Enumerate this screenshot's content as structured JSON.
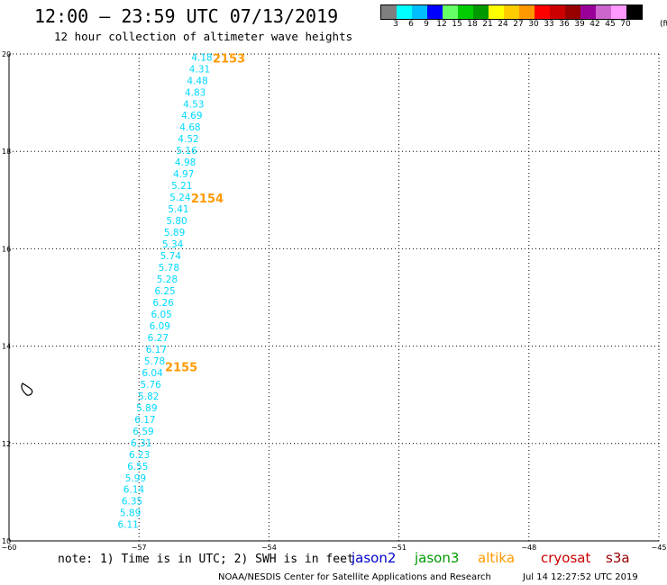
{
  "header": {
    "title": "12:00 — 23:59 UTC 07/13/2019",
    "subtitle": "12 hour collection of altimeter wave heights"
  },
  "colorbar": {
    "colors": [
      "#7f7f7f",
      "#00ffff",
      "#00bfff",
      "#0000ff",
      "#66ff66",
      "#00cc00",
      "#009900",
      "#ffff00",
      "#ffcc00",
      "#ff9900",
      "#ff0000",
      "#cc0000",
      "#990000",
      "#990099",
      "#cc66cc",
      "#ff99ff",
      "#000000"
    ],
    "labels": [
      "3",
      "6",
      "9",
      "12",
      "15",
      "18",
      "21",
      "24",
      "27",
      "30",
      "33",
      "36",
      "39",
      "42",
      "45",
      "70"
    ],
    "unit": "(ft)"
  },
  "footer": {
    "note": "note: 1) Time is in UTC; 2) SWH is in feet",
    "credit": "NOAA/NESDIS Center for Satellite Applications and Research",
    "timestamp": "Jul 14 12:27:52 UTC 2019",
    "satellites": [
      {
        "name": "jason2",
        "color": "#0000cc"
      },
      {
        "name": "jason3",
        "color": "#009900"
      },
      {
        "name": "altika",
        "color": "#ff9900"
      },
      {
        "name": "cryosat",
        "color": "#cc0000"
      },
      {
        "name": "s3a",
        "color": "#990000"
      }
    ]
  },
  "chart_data": {
    "type": "scatter",
    "title": "12:00 — 23:59 UTC 07/13/2019",
    "subtitle": "12 hour collection of altimeter wave heights",
    "xlabel": "",
    "ylabel": "",
    "xlim": [
      -60,
      -45
    ],
    "ylim": [
      10,
      20
    ],
    "x_ticks": [
      -60,
      -57,
      -54,
      -51,
      -48,
      -45
    ],
    "y_ticks": [
      10,
      12,
      14,
      16,
      18,
      20
    ],
    "grid": true,
    "series": [
      {
        "name": "altika",
        "color": "#00d8ff",
        "points": [
          {
            "x": -55.55,
            "y": 19.92,
            "v": "4.18"
          },
          {
            "x": -55.6,
            "y": 19.68,
            "v": "4.31"
          },
          {
            "x": -55.65,
            "y": 19.44,
            "v": "4.48"
          },
          {
            "x": -55.7,
            "y": 19.2,
            "v": "4.83"
          },
          {
            "x": -55.74,
            "y": 18.96,
            "v": "4.53"
          },
          {
            "x": -55.78,
            "y": 18.72,
            "v": "4.69"
          },
          {
            "x": -55.82,
            "y": 18.48,
            "v": "4.68"
          },
          {
            "x": -55.86,
            "y": 18.24,
            "v": "4.52"
          },
          {
            "x": -55.9,
            "y": 18.0,
            "v": "5.16"
          },
          {
            "x": -55.93,
            "y": 17.76,
            "v": "4.98"
          },
          {
            "x": -55.97,
            "y": 17.52,
            "v": "4.97"
          },
          {
            "x": -56.01,
            "y": 17.28,
            "v": "5.21"
          },
          {
            "x": -56.05,
            "y": 17.04,
            "v": "5.24"
          },
          {
            "x": -56.09,
            "y": 16.8,
            "v": "5.41"
          },
          {
            "x": -56.13,
            "y": 16.56,
            "v": "5.80"
          },
          {
            "x": -56.18,
            "y": 16.32,
            "v": "5.89"
          },
          {
            "x": -56.22,
            "y": 16.08,
            "v": "5.34"
          },
          {
            "x": -56.27,
            "y": 15.84,
            "v": "5.74"
          },
          {
            "x": -56.31,
            "y": 15.6,
            "v": "5.78"
          },
          {
            "x": -56.35,
            "y": 15.36,
            "v": "5.28"
          },
          {
            "x": -56.4,
            "y": 15.12,
            "v": "6.25"
          },
          {
            "x": -56.44,
            "y": 14.88,
            "v": "6.26"
          },
          {
            "x": -56.48,
            "y": 14.64,
            "v": "6.05"
          },
          {
            "x": -56.52,
            "y": 14.4,
            "v": "6.09"
          },
          {
            "x": -56.56,
            "y": 14.16,
            "v": "6.27"
          },
          {
            "x": -56.6,
            "y": 13.92,
            "v": "6.17"
          },
          {
            "x": -56.64,
            "y": 13.68,
            "v": "5.78"
          },
          {
            "x": -56.69,
            "y": 13.44,
            "v": "6.04"
          },
          {
            "x": -56.73,
            "y": 13.2,
            "v": "5.76"
          },
          {
            "x": -56.78,
            "y": 12.96,
            "v": "5.82"
          },
          {
            "x": -56.82,
            "y": 12.72,
            "v": "5.89"
          },
          {
            "x": -56.86,
            "y": 12.48,
            "v": "6.17"
          },
          {
            "x": -56.9,
            "y": 12.24,
            "v": "6.59"
          },
          {
            "x": -56.95,
            "y": 12.0,
            "v": "6.31"
          },
          {
            "x": -56.99,
            "y": 11.76,
            "v": "6.23"
          },
          {
            "x": -57.03,
            "y": 11.52,
            "v": "6.55"
          },
          {
            "x": -57.08,
            "y": 11.28,
            "v": "5.99"
          },
          {
            "x": -57.12,
            "y": 11.04,
            "v": "6.14"
          },
          {
            "x": -57.16,
            "y": 10.8,
            "v": "6.35"
          },
          {
            "x": -57.2,
            "y": 10.56,
            "v": "5.89"
          },
          {
            "x": -57.25,
            "y": 10.32,
            "v": "6.11"
          }
        ]
      }
    ],
    "time_labels": [
      {
        "label": "2153",
        "x": -55.3,
        "y": 19.92,
        "color": "#ff9900"
      },
      {
        "label": "2154",
        "x": -55.8,
        "y": 17.04,
        "color": "#ff9900"
      },
      {
        "label": "2155",
        "x": -56.4,
        "y": 13.58,
        "color": "#ff9900"
      }
    ]
  }
}
